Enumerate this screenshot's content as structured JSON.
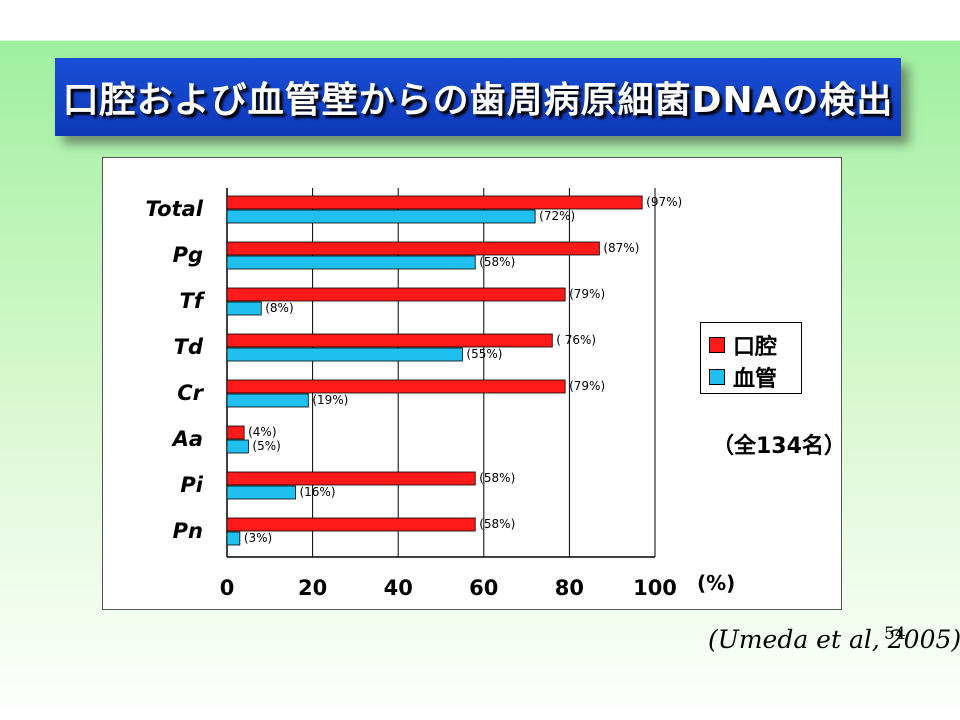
{
  "slide": {
    "title": "口腔および血管壁からの歯周病原細菌DNAの検出",
    "citation": "(Umeda et al, 2005)",
    "page_number": "54",
    "note": "（全134名）"
  },
  "colors": {
    "oral": "#ff1a1a",
    "vessel": "#1fc0f0",
    "title_bg": "#1a4fd6"
  },
  "chart_data": {
    "type": "bar",
    "orientation": "horizontal",
    "categories": [
      "Total",
      "Pg",
      "Tf",
      "Td",
      "Cr",
      "Aa",
      "Pi",
      "Pn"
    ],
    "series": [
      {
        "name": "口腔",
        "values": [
          97,
          87,
          79,
          76,
          79,
          4,
          58,
          58
        ],
        "labels": [
          "(97%)",
          "(87%)",
          "(79%)",
          "( 76%)",
          "(79%)",
          "(4%)",
          "(58%)",
          "(58%)"
        ]
      },
      {
        "name": "血管",
        "values": [
          72,
          58,
          8,
          55,
          19,
          5,
          16,
          3
        ],
        "labels": [
          "(72%)",
          "(58%)",
          "(8%)",
          "(55%)",
          "(19%)",
          "(5%)",
          "(16%)",
          "(3%)"
        ]
      }
    ],
    "x_ticks": [
      "0",
      "20",
      "40",
      "60",
      "80",
      "100"
    ],
    "x_unit": "(%)",
    "xlim": [
      0,
      100
    ],
    "grid": true,
    "legend_position": "right"
  }
}
